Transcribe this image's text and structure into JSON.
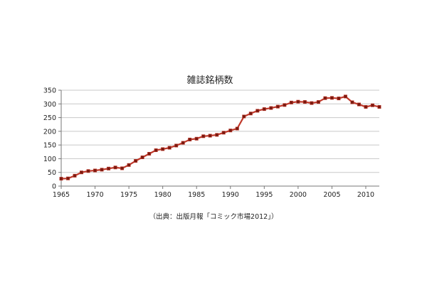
{
  "chart_data": {
    "type": "line",
    "title": "雑誌銘柄数",
    "xlabel": "",
    "ylabel": "",
    "xlim": [
      1965,
      2012
    ],
    "ylim": [
      0,
      350
    ],
    "x_ticks": [
      "1965",
      "1970",
      "1975",
      "1980",
      "1985",
      "1990",
      "1995",
      "2000",
      "2005",
      "2010"
    ],
    "y_ticks": [
      "0",
      "50",
      "100",
      "150",
      "200",
      "250",
      "300",
      "350"
    ],
    "grid": "horizontal",
    "legend": "none",
    "series": [
      {
        "color": "#c0392b",
        "marker_color": "#7a1a10",
        "x": [
          1965,
          1966,
          1967,
          1968,
          1969,
          1970,
          1971,
          1972,
          1973,
          1974,
          1975,
          1976,
          1977,
          1978,
          1979,
          1980,
          1981,
          1982,
          1983,
          1984,
          1985,
          1986,
          1987,
          1988,
          1989,
          1990,
          1991,
          1992,
          1993,
          1994,
          1995,
          1996,
          1997,
          1998,
          1999,
          2000,
          2001,
          2002,
          2003,
          2004,
          2005,
          2006,
          2007,
          2008,
          2009,
          2010,
          2011,
          2012
        ],
        "values": [
          27,
          28,
          38,
          50,
          55,
          57,
          60,
          64,
          68,
          65,
          77,
          92,
          105,
          118,
          131,
          135,
          140,
          148,
          158,
          170,
          173,
          182,
          184,
          187,
          195,
          203,
          210,
          254,
          265,
          275,
          281,
          285,
          290,
          296,
          305,
          308,
          307,
          303,
          307,
          321,
          322,
          320,
          327,
          306,
          298,
          289,
          295,
          289
        ]
      }
    ]
  },
  "caption": "（出典：出版月報「コミック市場2012」）"
}
